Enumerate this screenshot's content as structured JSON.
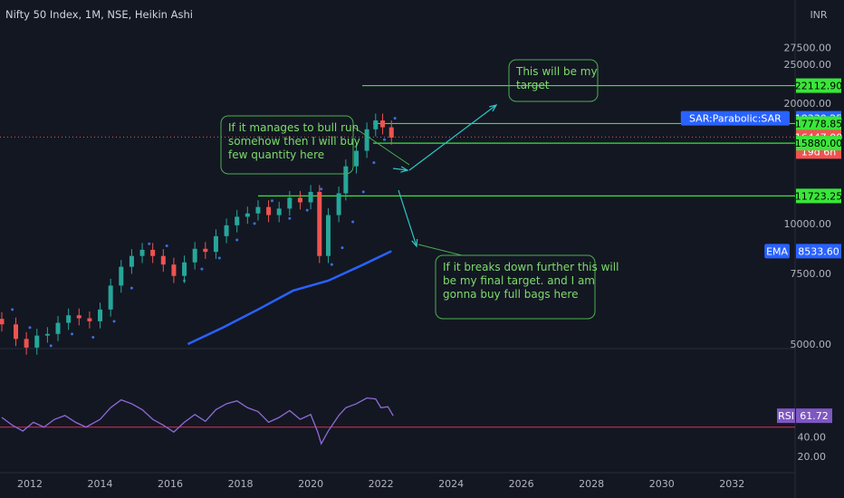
{
  "header": {
    "title": "Nifty 50 Index, 1M, NSE, Heikin Ashi",
    "currency": "INR"
  },
  "colors": {
    "bg": "#131722",
    "up": "#26a69a",
    "down": "#ef5350",
    "sar": "#3b6fe0",
    "ema": "#2962ff",
    "rsi": "#8e6bd8",
    "rsi_line": "#d0345a",
    "green": "#39e639",
    "annotation": "#2ec7c7"
  },
  "chart_data": [
    {
      "type": "candlestick",
      "title": "Nifty 50 Index, 1M, NSE, Heikin Ashi",
      "x_ticks": [
        "2012",
        "2014",
        "2016",
        "2018",
        "2020",
        "2022",
        "2024",
        "2026",
        "2028",
        "2030",
        "2032"
      ],
      "y_ticks": [
        "27500.00",
        "25000.00",
        "20000.00",
        "10000.00",
        "7500.00",
        "5000.00"
      ],
      "y_scale": "log",
      "ylim": [
        5000,
        28500
      ],
      "xlim": [
        2011.2,
        2033.8
      ],
      "candles": [
        {
          "t": 2011.2,
          "o": 5780,
          "c": 5600
        },
        {
          "t": 2011.6,
          "o": 5600,
          "c": 5150
        },
        {
          "t": 2011.9,
          "o": 5150,
          "c": 4900
        },
        {
          "t": 2012.2,
          "o": 4900,
          "c": 5250
        },
        {
          "t": 2012.5,
          "o": 5250,
          "c": 5300
        },
        {
          "t": 2012.8,
          "o": 5300,
          "c": 5650
        },
        {
          "t": 2013.1,
          "o": 5650,
          "c": 5900
        },
        {
          "t": 2013.4,
          "o": 5900,
          "c": 5800
        },
        {
          "t": 2013.7,
          "o": 5800,
          "c": 5700
        },
        {
          "t": 2014.0,
          "o": 5700,
          "c": 6100
        },
        {
          "t": 2014.3,
          "o": 6100,
          "c": 7000
        },
        {
          "t": 2014.6,
          "o": 7000,
          "c": 7800
        },
        {
          "t": 2014.9,
          "o": 7800,
          "c": 8300
        },
        {
          "t": 2015.2,
          "o": 8300,
          "c": 8600
        },
        {
          "t": 2015.5,
          "o": 8600,
          "c": 8300
        },
        {
          "t": 2015.8,
          "o": 8300,
          "c": 7900
        },
        {
          "t": 2016.1,
          "o": 7900,
          "c": 7400
        },
        {
          "t": 2016.4,
          "o": 7400,
          "c": 8000
        },
        {
          "t": 2016.7,
          "o": 8000,
          "c": 8650
        },
        {
          "t": 2017.0,
          "o": 8650,
          "c": 8500
        },
        {
          "t": 2017.3,
          "o": 8500,
          "c": 9300
        },
        {
          "t": 2017.6,
          "o": 9300,
          "c": 9900
        },
        {
          "t": 2017.9,
          "o": 9900,
          "c": 10400
        },
        {
          "t": 2018.2,
          "o": 10400,
          "c": 10600
        },
        {
          "t": 2018.5,
          "o": 10600,
          "c": 11000
        },
        {
          "t": 2018.8,
          "o": 11000,
          "c": 10500
        },
        {
          "t": 2019.1,
          "o": 10500,
          "c": 10900
        },
        {
          "t": 2019.4,
          "o": 10900,
          "c": 11600
        },
        {
          "t": 2019.7,
          "o": 11600,
          "c": 11300
        },
        {
          "t": 2020.0,
          "o": 11300,
          "c": 12000
        },
        {
          "t": 2020.25,
          "o": 12000,
          "c": 8300
        },
        {
          "t": 2020.5,
          "o": 8300,
          "c": 10500
        },
        {
          "t": 2020.8,
          "o": 10500,
          "c": 11900
        },
        {
          "t": 2021.0,
          "o": 11900,
          "c": 13900
        },
        {
          "t": 2021.3,
          "o": 13900,
          "c": 15200
        },
        {
          "t": 2021.6,
          "o": 15200,
          "c": 17200
        },
        {
          "t": 2021.85,
          "o": 17200,
          "c": 18100
        },
        {
          "t": 2022.05,
          "o": 18100,
          "c": 17400
        },
        {
          "t": 2022.3,
          "o": 17400,
          "c": 16400
        }
      ],
      "sar_dots": [
        {
          "t": 2011.5,
          "v": 6100
        },
        {
          "t": 2012.0,
          "v": 5500
        },
        {
          "t": 2012.6,
          "v": 4950
        },
        {
          "t": 2013.2,
          "v": 5300
        },
        {
          "t": 2013.8,
          "v": 5200
        },
        {
          "t": 2014.4,
          "v": 5700
        },
        {
          "t": 2014.9,
          "v": 6900
        },
        {
          "t": 2015.4,
          "v": 8900
        },
        {
          "t": 2015.9,
          "v": 8800
        },
        {
          "t": 2016.4,
          "v": 7200
        },
        {
          "t": 2016.9,
          "v": 7700
        },
        {
          "t": 2017.4,
          "v": 8200
        },
        {
          "t": 2017.9,
          "v": 9100
        },
        {
          "t": 2018.4,
          "v": 10000
        },
        {
          "t": 2018.9,
          "v": 11400
        },
        {
          "t": 2019.4,
          "v": 10300
        },
        {
          "t": 2019.9,
          "v": 10800
        },
        {
          "t": 2020.3,
          "v": 12200
        },
        {
          "t": 2020.6,
          "v": 7900
        },
        {
          "t": 2020.9,
          "v": 8700
        },
        {
          "t": 2021.2,
          "v": 10100
        },
        {
          "t": 2021.5,
          "v": 12000
        },
        {
          "t": 2021.8,
          "v": 14200
        },
        {
          "t": 2022.1,
          "v": 16200
        },
        {
          "t": 2022.4,
          "v": 18330.25
        }
      ],
      "ema": [
        {
          "t": 2016.5,
          "v": 5000
        },
        {
          "t": 2017.5,
          "v": 5500
        },
        {
          "t": 2018.5,
          "v": 6100
        },
        {
          "t": 2019.5,
          "v": 6800
        },
        {
          "t": 2020.5,
          "v": 7200
        },
        {
          "t": 2021.5,
          "v": 7900
        },
        {
          "t": 2022.3,
          "v": 8533.6
        }
      ],
      "horizontal_levels": [
        22112.9,
        17778.85,
        15880.0,
        11723.25
      ],
      "price_tags": [
        {
          "label": "22112.90",
          "value": 22112.9,
          "kind": "green"
        },
        {
          "label": "SAR:Parabolic:SAR",
          "value": 18330.25,
          "kind": "blue-name"
        },
        {
          "label": "18330.25",
          "value": 18330.25,
          "kind": "blue"
        },
        {
          "label": "17778.85",
          "value": 17778.85,
          "kind": "green"
        },
        {
          "label": "16447.00",
          "value": 16447.0,
          "kind": "red"
        },
        {
          "label": "19d 6h",
          "value": null,
          "kind": "red-sub"
        },
        {
          "label": "15882.70",
          "value": 15882.7,
          "kind": "red"
        },
        {
          "label": "15880.00",
          "value": 15880.0,
          "kind": "green"
        },
        {
          "label": "11723.25",
          "value": 11723.25,
          "kind": "green"
        },
        {
          "label": "EMA",
          "value": 8533.6,
          "kind": "blue-name"
        },
        {
          "label": "8533.60",
          "value": 8533.6,
          "kind": "blue"
        }
      ],
      "annotations": [
        "This will be my target",
        "If it manages to bull run somehow then I will buy few quantity here",
        "If it breaks down further this will be my final target. and I am gonna buy full bags here"
      ]
    },
    {
      "type": "line",
      "series": [
        {
          "name": "RSI",
          "values": [
            {
              "t": 2011.2,
              "v": 60
            },
            {
              "t": 2011.5,
              "v": 52
            },
            {
              "t": 2011.8,
              "v": 46
            },
            {
              "t": 2012.1,
              "v": 55
            },
            {
              "t": 2012.4,
              "v": 50
            },
            {
              "t": 2012.7,
              "v": 58
            },
            {
              "t": 2013.0,
              "v": 62
            },
            {
              "t": 2013.3,
              "v": 55
            },
            {
              "t": 2013.6,
              "v": 50
            },
            {
              "t": 2014.0,
              "v": 58
            },
            {
              "t": 2014.3,
              "v": 70
            },
            {
              "t": 2014.6,
              "v": 78
            },
            {
              "t": 2014.9,
              "v": 74
            },
            {
              "t": 2015.2,
              "v": 68
            },
            {
              "t": 2015.5,
              "v": 58
            },
            {
              "t": 2015.8,
              "v": 52
            },
            {
              "t": 2016.1,
              "v": 45
            },
            {
              "t": 2016.4,
              "v": 55
            },
            {
              "t": 2016.7,
              "v": 63
            },
            {
              "t": 2017.0,
              "v": 56
            },
            {
              "t": 2017.3,
              "v": 68
            },
            {
              "t": 2017.6,
              "v": 74
            },
            {
              "t": 2017.9,
              "v": 77
            },
            {
              "t": 2018.2,
              "v": 70
            },
            {
              "t": 2018.5,
              "v": 66
            },
            {
              "t": 2018.8,
              "v": 55
            },
            {
              "t": 2019.1,
              "v": 60
            },
            {
              "t": 2019.4,
              "v": 67
            },
            {
              "t": 2019.7,
              "v": 58
            },
            {
              "t": 2020.0,
              "v": 63
            },
            {
              "t": 2020.2,
              "v": 45
            },
            {
              "t": 2020.3,
              "v": 33
            },
            {
              "t": 2020.5,
              "v": 46
            },
            {
              "t": 2020.8,
              "v": 62
            },
            {
              "t": 2021.0,
              "v": 70
            },
            {
              "t": 2021.3,
              "v": 74
            },
            {
              "t": 2021.6,
              "v": 80
            },
            {
              "t": 2021.85,
              "v": 79
            },
            {
              "t": 2022.0,
              "v": 70
            },
            {
              "t": 2022.2,
              "v": 71
            },
            {
              "t": 2022.35,
              "v": 61.72
            }
          ]
        }
      ],
      "y_ticks": [
        "60.00",
        "40.00",
        "20.00"
      ],
      "ylim": [
        10,
        82
      ],
      "level_line": 50,
      "last_value_label": "RSI",
      "last_value": "61.72"
    }
  ]
}
